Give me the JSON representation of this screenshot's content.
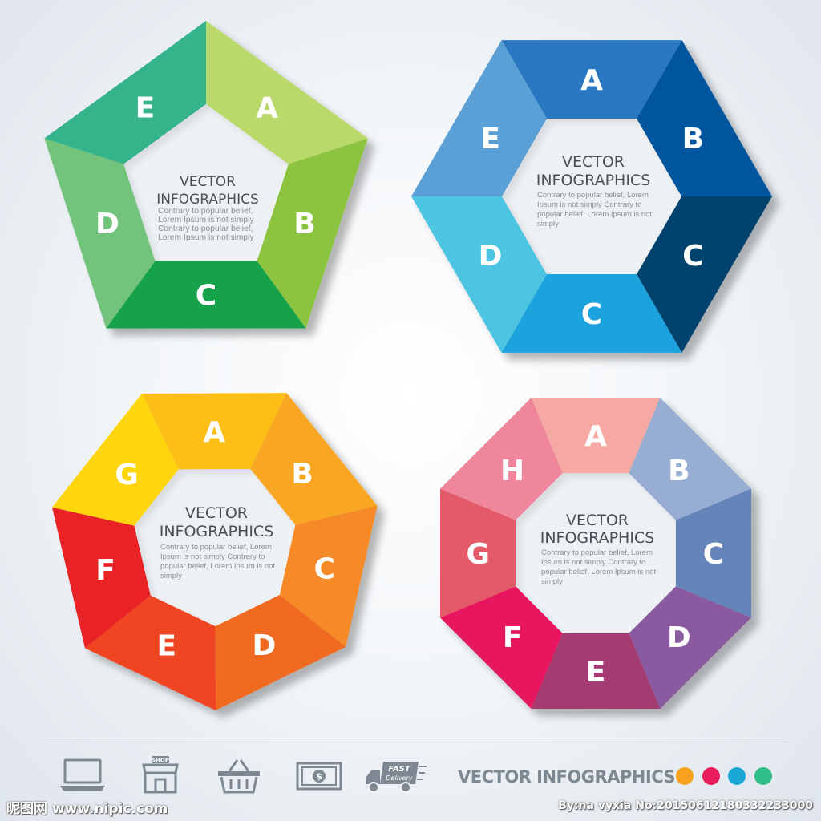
{
  "diagrams": [
    {
      "id": "pentagon",
      "title_lines": [
        "VECTOR",
        "INFOGRAPHICS"
      ],
      "body_lines": [
        "Contrary to popular belief,",
        "Lorem Ipsum is not simply",
        "Contrary to popular belief,",
        "Lorem Ipsum is not simply"
      ],
      "segments": [
        {
          "label": "A",
          "color": "#b9d96a"
        },
        {
          "label": "B",
          "color": "#8cc43f"
        },
        {
          "label": "C",
          "color": "#14a24a"
        },
        {
          "label": "D",
          "color": "#72c47d"
        },
        {
          "label": "E",
          "color": "#34b48c"
        }
      ]
    },
    {
      "id": "hexagon",
      "title_lines": [
        "VECTOR",
        "INFOGRAPHICS"
      ],
      "body_lines": [
        "Contrary to popular belief, Lorem",
        "Ipsum is not simply  Contrary to",
        "popular belief, Lorem Ipsum is not",
        "simply"
      ],
      "segments": [
        {
          "label": "A",
          "color": "#2a78c2"
        },
        {
          "label": "B",
          "color": "#06569e"
        },
        {
          "label": "C",
          "color": "#06426e"
        },
        {
          "label": "C",
          "color": "#1aa2dd"
        },
        {
          "label": "D",
          "color": "#4dc4e2"
        },
        {
          "label": "E",
          "color": "#5aa0d6"
        }
      ]
    },
    {
      "id": "heptagon",
      "title_lines": [
        "VECTOR",
        "INFOGRAPHICS"
      ],
      "body_lines": [
        "Contrary to popular belief, Lorem",
        "Ipsum is not simply  Contrary to",
        "popular belief, Lorem Ipsum is not",
        "simply"
      ],
      "segments": [
        {
          "label": "A",
          "color": "#fdbf17"
        },
        {
          "label": "B",
          "color": "#f9a620"
        },
        {
          "label": "C",
          "color": "#f58a25"
        },
        {
          "label": "D",
          "color": "#f16a22"
        },
        {
          "label": "E",
          "color": "#ef4423"
        },
        {
          "label": "F",
          "color": "#e92127"
        },
        {
          "label": "G",
          "color": "#ffd510"
        }
      ]
    },
    {
      "id": "octagon",
      "title_lines": [
        "VECTOR",
        "INFOGRAPHICS"
      ],
      "body_lines": [
        "Contrary to popular belief, Lorem",
        "Ipsum is not simply  Contrary to",
        "popular belief, Lorem Ipsum is not",
        "simply"
      ],
      "segments": [
        {
          "label": "A",
          "color": "#f6a8a3"
        },
        {
          "label": "B",
          "color": "#97add2"
        },
        {
          "label": "C",
          "color": "#6584b9"
        },
        {
          "label": "D",
          "color": "#8a5aa0"
        },
        {
          "label": "E",
          "color": "#a43a72"
        },
        {
          "label": "F",
          "color": "#e8185e"
        },
        {
          "label": "G",
          "color": "#e35a67"
        },
        {
          "label": "H",
          "color": "#ef869c"
        }
      ]
    }
  ],
  "footer": {
    "title": "VECTOR INFOGRAPHICS",
    "icons": [
      "laptop-icon",
      "shop-icon",
      "basket-icon",
      "cash-icon",
      "delivery-truck-icon"
    ],
    "shop_sign": "SHOP",
    "cash_symbol": "$",
    "delivery_line1": "FAST",
    "delivery_line2": "Delivery",
    "dot_colors": [
      "#f8a11c",
      "#ea1d5c",
      "#1aa7d5",
      "#2fbf8a"
    ]
  },
  "watermark": {
    "left": "昵图网 www.nipic.com",
    "right": "By:na vyxia No:20150612180332233000"
  }
}
